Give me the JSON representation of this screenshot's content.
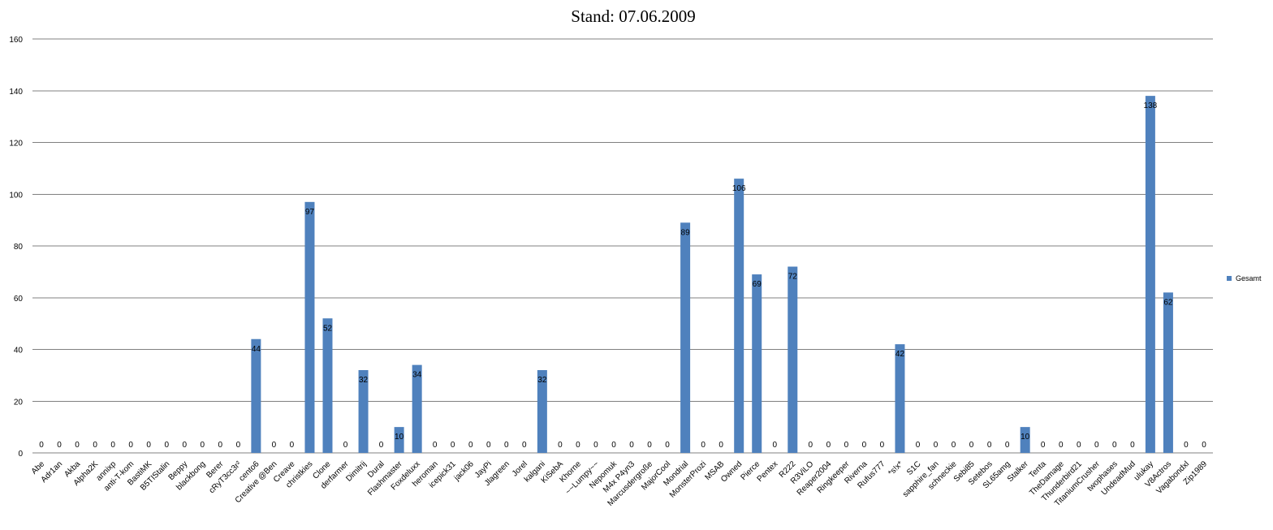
{
  "chart_data": {
    "type": "bar",
    "title": "Stand: 07.06.2009",
    "xlabel": "",
    "ylabel": "",
    "ylim": [
      0,
      160
    ],
    "yticks": [
      "0",
      "20",
      "40",
      "60",
      "80",
      "100",
      "120",
      "140",
      "160"
    ],
    "grid": true,
    "legend_position": "right",
    "colors": {
      "bar": "#4f81bd",
      "grid": "#808080"
    },
    "categories": [
      "Abe",
      "Adr1an",
      "Akba",
      "Alpha2K",
      "annixp",
      "anti-T-kom",
      "BastiMK",
      "B5TIStalin",
      "Beppy",
      "blackbong",
      "Berer",
      "cRyT3cc3r²",
      "cento6",
      "Creative @Ben",
      "Creave",
      "christkies",
      "Clone",
      "derfarmer",
      "Dimitrij",
      "Dural",
      "Flashmaster",
      "Foxdeluxx",
      "heroman",
      "icepick31",
      "jack06",
      "JayPi",
      "Jlagreen",
      "Jorel",
      "kalgani",
      "KiSebA",
      "Khorne",
      "~~Lumpy~~",
      "Nepomuk",
      "M4x P4yn3",
      "Marcusdergroße",
      "MajorCool",
      "Mondrial",
      "MonsterProzi",
      "MSAB",
      "Owned",
      "Pierce",
      "Pentex",
      "R222",
      "R3ViLO",
      "Reaper2004",
      "Ringkeeper",
      "Riverna",
      "Rufus777",
      "*s!x*",
      "S1C",
      "sapphire_fan",
      "schneckie",
      "Sebi85",
      "Setebos",
      "SL65amg",
      "Stalker",
      "Tenta",
      "TheDamage",
      "Thunderbird21",
      "TitaniumCrusher",
      "twophases",
      "UndeadMud",
      "ulukay",
      "V8Actros",
      "Vagabondxl",
      "Zip1989"
    ],
    "series": [
      {
        "name": "Gesamt",
        "values": [
          0,
          0,
          0,
          0,
          0,
          0,
          0,
          0,
          0,
          0,
          0,
          0,
          44,
          0,
          0,
          97,
          52,
          0,
          32,
          0,
          10,
          34,
          0,
          0,
          0,
          0,
          0,
          0,
          32,
          0,
          0,
          0,
          0,
          0,
          0,
          0,
          89,
          0,
          0,
          106,
          69,
          0,
          72,
          0,
          0,
          0,
          0,
          0,
          42,
          0,
          0,
          0,
          0,
          0,
          0,
          10,
          0,
          0,
          0,
          0,
          0,
          0,
          138,
          62,
          0,
          0
        ]
      }
    ]
  }
}
